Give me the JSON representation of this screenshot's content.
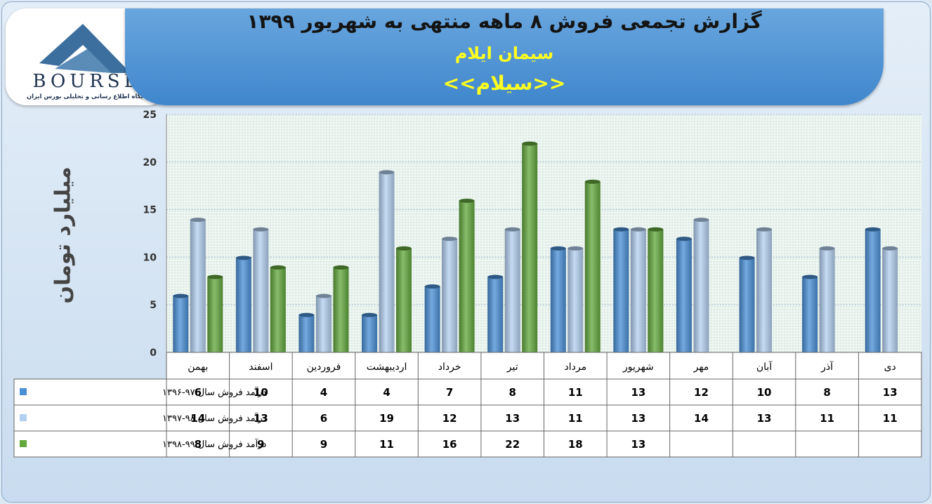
{
  "header": {
    "title": "گزارش تجمعی فروش ۸ ماهه منتهی به شهریور ۱۳۹۹",
    "company": "سیمان ایلام",
    "symbol": "<<سیلام>>"
  },
  "logo": {
    "brand": "BOURSE",
    "tagline": "پایگاه اطلاع رسانی و تحلیلی بورس ایران"
  },
  "chart_data": {
    "type": "bar",
    "ylabel": "میلیارد تومان",
    "ylim": [
      0,
      25
    ],
    "yticks": [
      0,
      5,
      10,
      15,
      20,
      25
    ],
    "grid": true,
    "categories": [
      "بهمن",
      "اسفند",
      "فروردین",
      "اردیبهشت",
      "خرداد",
      "تیر",
      "مرداد",
      "شهریور",
      "مهر",
      "آبان",
      "آذر",
      "دی"
    ],
    "series": [
      {
        "name": "درآمد فروش سال ۹۷-۱۳۹۶",
        "color": "#4a8fd6",
        "values": [
          6,
          10,
          4,
          4,
          7,
          8,
          11,
          13,
          12,
          10,
          8,
          13
        ]
      },
      {
        "name": "درآمد فروش سال ۹۸-۱۳۹۷",
        "color": "#b3d0f0",
        "values": [
          14,
          13,
          6,
          19,
          12,
          13,
          11,
          13,
          14,
          13,
          11,
          11
        ]
      },
      {
        "name": "درآمد فروش سال ۹۹-۱۳۹۸",
        "color": "#62a83c",
        "values": [
          8,
          9,
          9,
          11,
          16,
          22,
          18,
          13,
          null,
          null,
          null,
          null
        ]
      }
    ]
  }
}
